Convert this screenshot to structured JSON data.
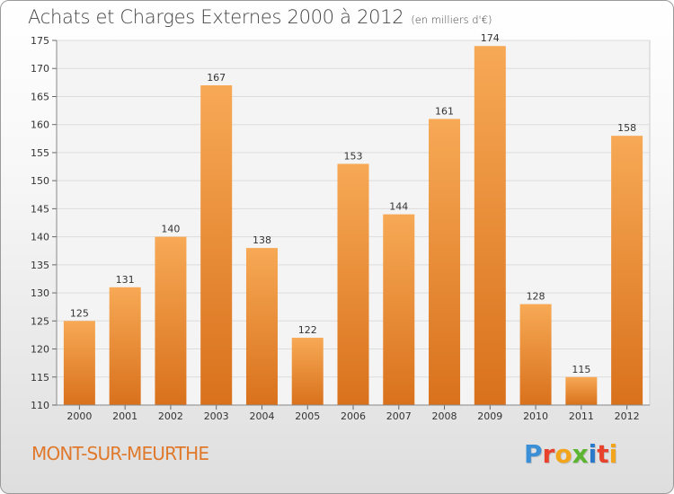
{
  "title": "Achats et Charges Externes 2000 à 2012",
  "unit": "(en milliers d'€)",
  "place": "MONT-SUR-MEURTHE",
  "logo_text": "Proxiti",
  "logo_colors": [
    "#3a8fd6",
    "#e8412c",
    "#f2a51a",
    "#5cb531",
    "#2a78c9",
    "#e8412c",
    "#f2a51a"
  ],
  "colors": {
    "bar_light": "#f7a955",
    "bar_dark": "#d9711c",
    "title": "#444444",
    "place": "#e0792b"
  },
  "chart_data": {
    "type": "bar",
    "categories": [
      "2000",
      "2001",
      "2002",
      "2003",
      "2004",
      "2005",
      "2006",
      "2007",
      "2008",
      "2009",
      "2010",
      "2011",
      "2012"
    ],
    "values": [
      125,
      131,
      140,
      167,
      138,
      122,
      153,
      144,
      161,
      174,
      128,
      115,
      158
    ],
    "ylim": [
      110,
      175
    ],
    "yticks": [
      110,
      115,
      120,
      125,
      130,
      135,
      140,
      145,
      150,
      155,
      160,
      165,
      170,
      175
    ],
    "grid": true,
    "data_labels": true
  }
}
